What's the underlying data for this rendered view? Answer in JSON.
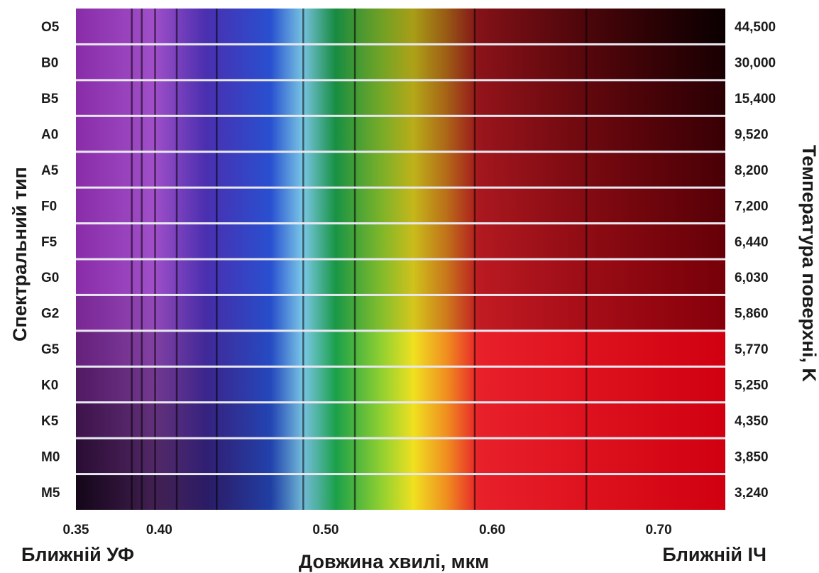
{
  "chart_data": {
    "type": "heatmap",
    "y_axis_label": "Спектральний тип",
    "secondary_y_axis_label": "Температура поверхні, K",
    "x_axis_label": "Довжина хвилі, мкм",
    "x_range_left_label": "Ближній УФ",
    "x_range_right_label": "Ближній ІЧ",
    "xlim": [
      0.35,
      0.74
    ],
    "x_ticks": [
      {
        "value": 0.35,
        "label": "0.35"
      },
      {
        "value": 0.4,
        "label": "0.40"
      },
      {
        "value": 0.5,
        "label": "0.50"
      },
      {
        "value": 0.6,
        "label": "0.60"
      },
      {
        "value": 0.7,
        "label": "0.70"
      }
    ],
    "rows": [
      {
        "spectral_type": "O5",
        "temperature": "44,500"
      },
      {
        "spectral_type": "B0",
        "temperature": "30,000"
      },
      {
        "spectral_type": "B5",
        "temperature": "15,400"
      },
      {
        "spectral_type": "A0",
        "temperature": "9,520"
      },
      {
        "spectral_type": "A5",
        "temperature": "8,200"
      },
      {
        "spectral_type": "F0",
        "temperature": "7,200"
      },
      {
        "spectral_type": "F5",
        "temperature": "6,440"
      },
      {
        "spectral_type": "G0",
        "temperature": "6,030"
      },
      {
        "spectral_type": "G2",
        "temperature": "5,860"
      },
      {
        "spectral_type": "G5",
        "temperature": "5,770"
      },
      {
        "spectral_type": "K0",
        "temperature": "5,250"
      },
      {
        "spectral_type": "K5",
        "temperature": "4,350"
      },
      {
        "spectral_type": "M0",
        "temperature": "3,850"
      },
      {
        "spectral_type": "M5",
        "temperature": "3,240"
      }
    ]
  }
}
